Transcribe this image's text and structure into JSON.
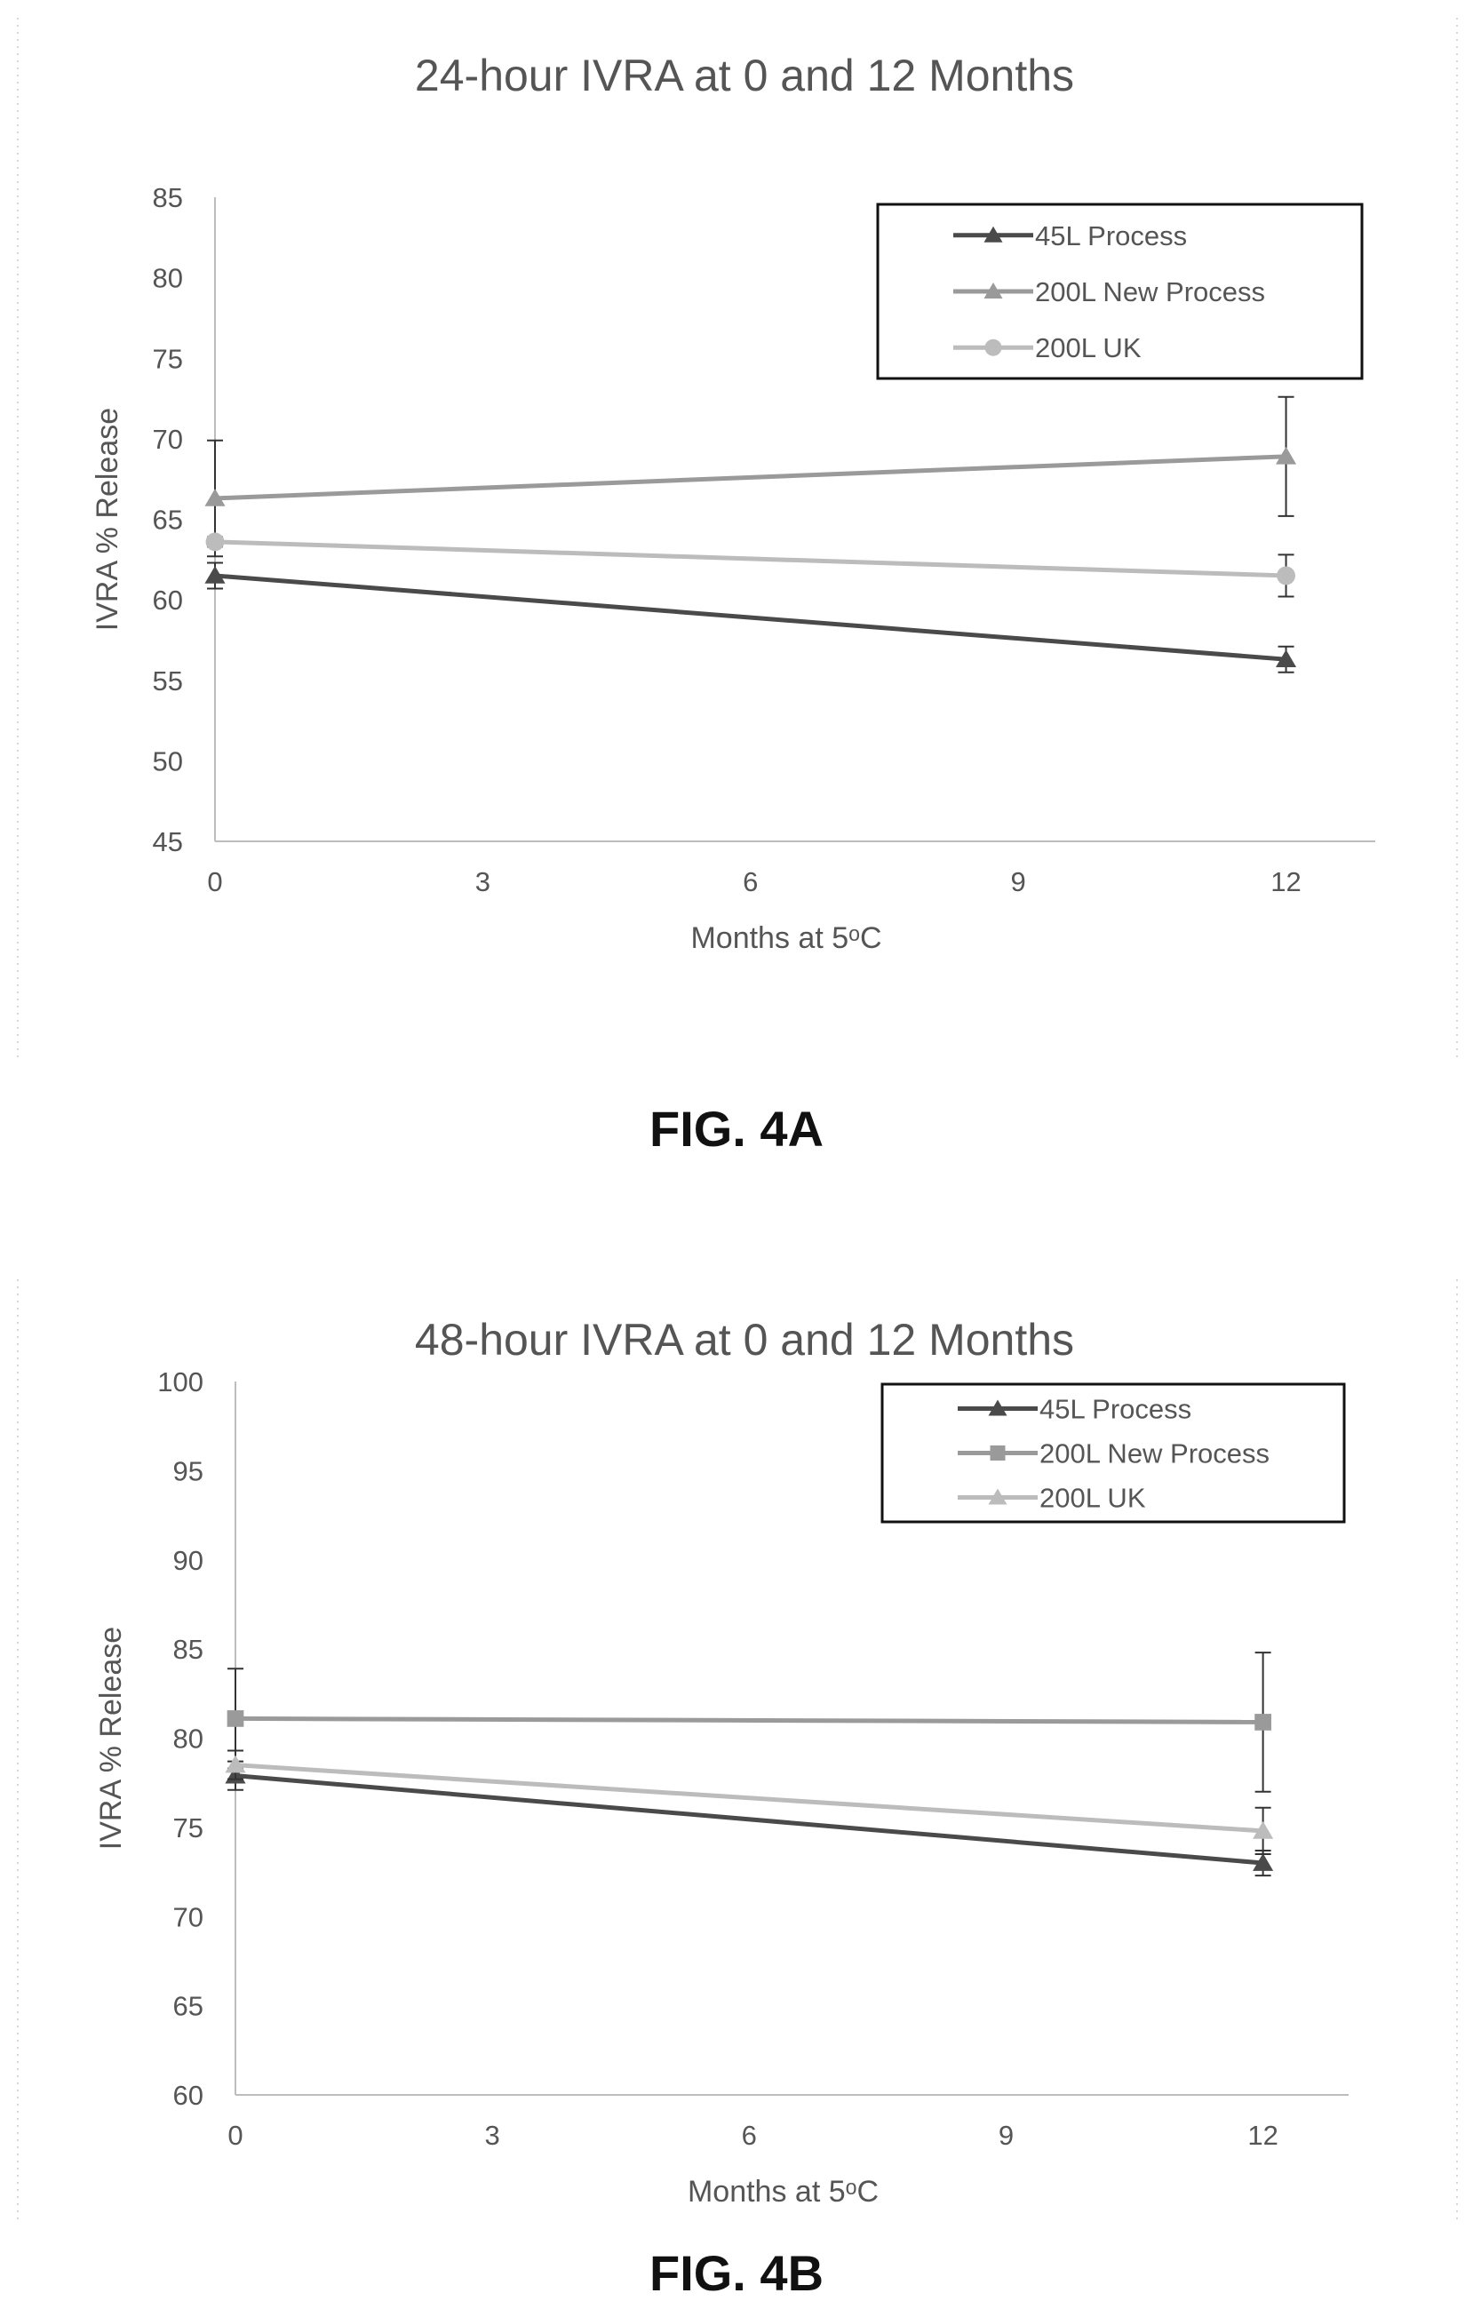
{
  "figures": [
    {
      "caption": "FIG. 4A"
    },
    {
      "caption": "FIG. 4B"
    }
  ],
  "chart_data": [
    {
      "type": "line",
      "title": "24-hour IVRA at 0 and 12 Months",
      "xlabel": "Months at 5ᵒC",
      "ylabel": "IVRA % Release",
      "xlim": [
        0,
        13
      ],
      "ylim": [
        45,
        85
      ],
      "x_ticks": [
        0,
        3,
        6,
        9,
        12
      ],
      "y_ticks": [
        45,
        50,
        55,
        60,
        65,
        70,
        75,
        80,
        85
      ],
      "grid": false,
      "legend_position": "top-right",
      "series": [
        {
          "name": "45L Process",
          "x": [
            0,
            12
          ],
          "y": [
            61.5,
            56.3
          ],
          "yerr": [
            0.8,
            0.8
          ],
          "marker": "triangle",
          "color": "#4a4a4a"
        },
        {
          "name": "200L New Process",
          "x": [
            0,
            12
          ],
          "y": [
            66.3,
            68.9
          ],
          "yerr": [
            3.6,
            3.7
          ],
          "marker": "triangle",
          "color": "#9a9a9a"
        },
        {
          "name": "200L UK",
          "x": [
            0,
            12
          ],
          "y": [
            63.6,
            61.5
          ],
          "yerr": [
            0.3,
            1.3
          ],
          "marker": "circle",
          "color": "#bcbcbc"
        }
      ]
    },
    {
      "type": "line",
      "title": "48-hour IVRA at 0 and 12 Months",
      "xlabel": "Months at 5ᵒC",
      "ylabel": "IVRA % Release",
      "xlim": [
        0,
        13
      ],
      "ylim": [
        60,
        100
      ],
      "x_ticks": [
        0,
        3,
        6,
        9,
        12
      ],
      "y_ticks": [
        60,
        65,
        70,
        75,
        80,
        85,
        90,
        95,
        100
      ],
      "grid": false,
      "legend_position": "top-right",
      "series": [
        {
          "name": "45L Process",
          "x": [
            0,
            12
          ],
          "y": [
            77.9,
            73.0
          ],
          "yerr": [
            0.8,
            0.7
          ],
          "marker": "triangle",
          "color": "#4a4a4a"
        },
        {
          "name": "200L New Process",
          "x": [
            0,
            12
          ],
          "y": [
            81.1,
            80.9
          ],
          "yerr": [
            2.8,
            3.9
          ],
          "marker": "square",
          "color": "#9a9a9a"
        },
        {
          "name": "200L UK",
          "x": [
            0,
            12
          ],
          "y": [
            78.5,
            74.8
          ],
          "yerr": [
            0.8,
            1.3
          ],
          "marker": "triangle",
          "color": "#bcbcbc"
        }
      ]
    }
  ]
}
